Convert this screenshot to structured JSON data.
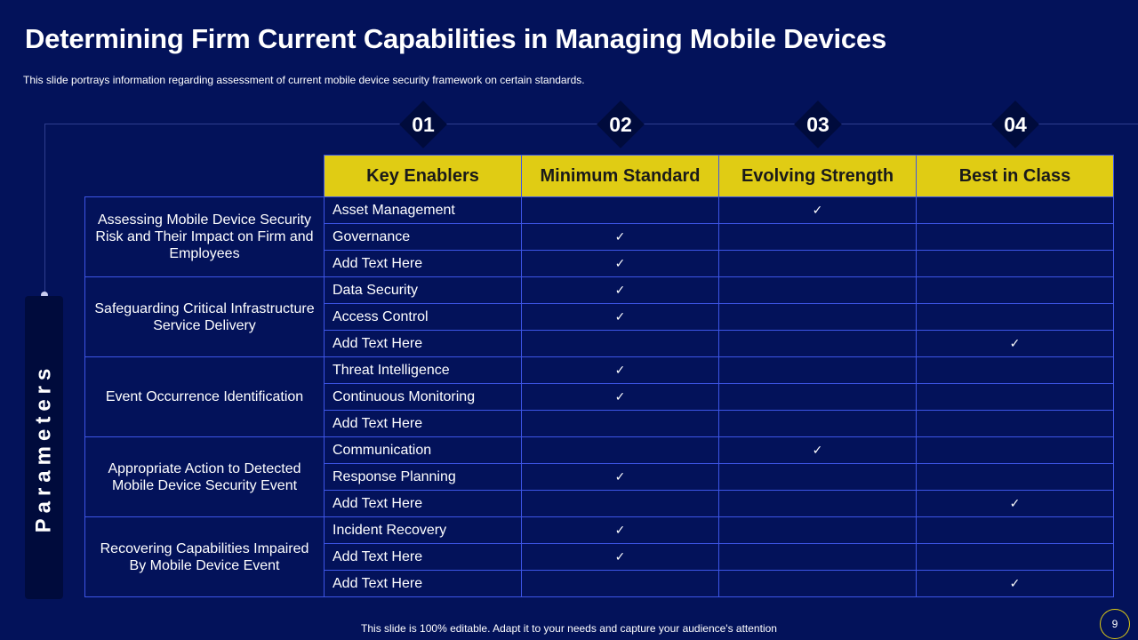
{
  "title": "Determining Firm Current Capabilities in Managing Mobile Devices",
  "subtitle": "This slide portrays information  regarding assessment of current mobile device security framework  on certain standards.",
  "side_label": "Parameters",
  "badges": [
    "01",
    "02",
    "03",
    "04"
  ],
  "headers": [
    "Key Enablers",
    "Minimum  Standard",
    "Evolving Strength",
    "Best in Class"
  ],
  "check_symbol": "✓",
  "parameters": [
    "Assessing Mobile Device Security Risk and Their Impact  on Firm and Employees",
    "Safeguarding Critical Infrastructure Service Delivery",
    "Event Occurrence  Identification",
    "Appropriate Action to Detected Mobile Device Security  Event",
    "Recovering Capabilities Impaired By Mobile Device Event"
  ],
  "rows": [
    {
      "enabler": "Asset Management",
      "level": "Evolving Strength"
    },
    {
      "enabler": "Governance",
      "level": "Minimum Standard"
    },
    {
      "enabler": "Add Text Here",
      "level": "Minimum Standard"
    },
    {
      "enabler": "Data Security",
      "level": "Minimum Standard"
    },
    {
      "enabler": "Access Control",
      "level": "Minimum Standard"
    },
    {
      "enabler": "Add Text Here",
      "level": "Best in Class"
    },
    {
      "enabler": "Threat  Intelligence",
      "level": "Minimum Standard"
    },
    {
      "enabler": "Continuous  Monitoring",
      "level": "Minimum Standard"
    },
    {
      "enabler": "Add Text Here",
      "level": ""
    },
    {
      "enabler": "Communication",
      "level": "Evolving Strength"
    },
    {
      "enabler": "Response Planning",
      "level": "Minimum Standard"
    },
    {
      "enabler": "Add Text Here",
      "level": "Best in Class"
    },
    {
      "enabler": "Incident  Recovery",
      "level": "Minimum Standard"
    },
    {
      "enabler": "Add Text Here",
      "level": "Minimum Standard"
    },
    {
      "enabler": "Add Text Here",
      "level": "Best in Class"
    }
  ],
  "footer": "This slide is 100% editable. Adapt it to your needs and capture your audience's attention",
  "page_number": "9",
  "colors": {
    "background": "#03125a",
    "header_fill": "#e0cc14",
    "grid_line": "#3d55e6",
    "dark_panel": "#000b3c"
  }
}
